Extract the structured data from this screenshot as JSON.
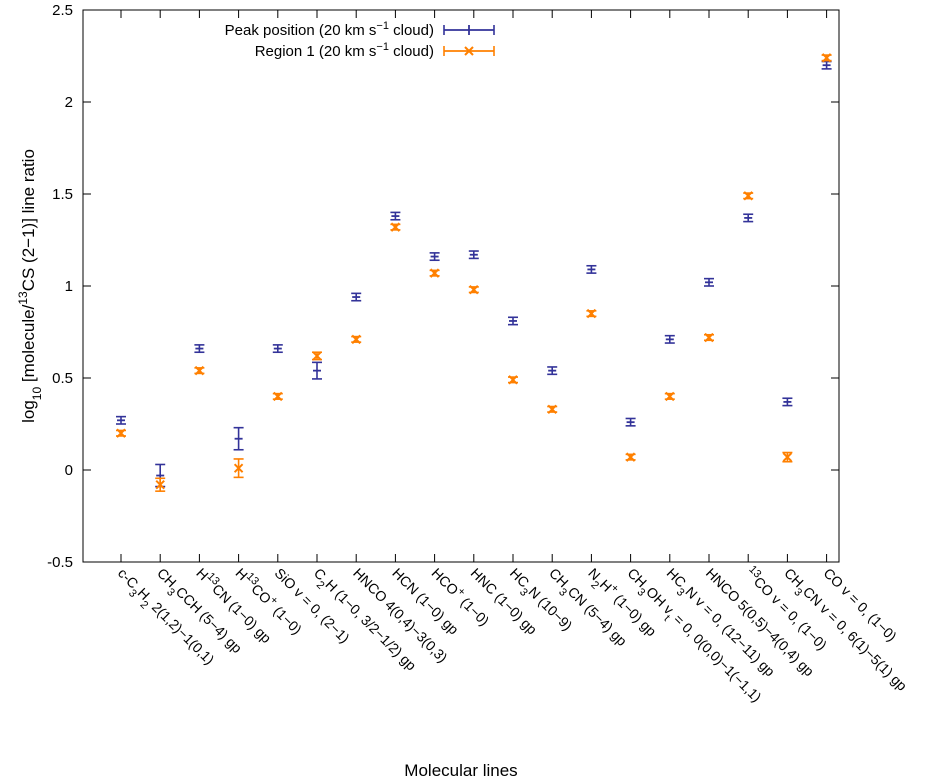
{
  "chart_data": {
    "type": "scatter",
    "xlabel": "Molecular lines",
    "ylabel": "log10 [molecule/13CS (2−1)] line ratio",
    "ylim": [
      -0.5,
      2.5
    ],
    "yticks": [
      "-0.5",
      "0",
      "0.5",
      "1",
      "1.5",
      "2",
      "2.5"
    ],
    "grid": false,
    "legend_position": "top-left",
    "categories": [
      "c-C3H2 2(1,2)−1(0,1)",
      "CH3CCH (5−4) gp",
      "H13CN (1−0) gp",
      "H13CO+ (1−0)",
      "SiO v = 0, (2−1)",
      "C2H (1−0, 3/2−1/2) gp",
      "HNCO 4(0,4)−3(0,3)",
      "HCN (1−0) gp",
      "HCO+ (1−0)",
      "HNC (1−0) gp",
      "HC3N (10−9)",
      "CH3CN (5−4) gp",
      "N2H+ (1−0) gp",
      "CH3OH vt = 0, 0(0,0)−1(−1,1)",
      "HC3N v = 0, (12−11) gp",
      "HNCO 5(0,5)−4(0,4) gp",
      "13CO v = 0, (1−0)",
      "CH3CN v = 0, 6(1)−5(1) gp",
      "CO v = 0, (1−0)"
    ],
    "series": [
      {
        "name": "Peak position (20 km s−1 cloud)",
        "color": "#333399",
        "marker": "plus",
        "values": [
          0.27,
          -0.03,
          0.66,
          0.17,
          0.66,
          0.54,
          0.94,
          1.38,
          1.16,
          1.17,
          0.81,
          0.54,
          1.09,
          0.26,
          0.71,
          1.02,
          1.37,
          0.37,
          2.2
        ],
        "errors": [
          0.02,
          0.06,
          0.02,
          0.06,
          0.02,
          0.045,
          0.02,
          0.02,
          0.02,
          0.02,
          0.02,
          0.02,
          0.02,
          0.02,
          0.02,
          0.02,
          0.02,
          0.02,
          0.02
        ]
      },
      {
        "name": "Region 1 (20 km s−1 cloud)",
        "color": "#ff8000",
        "marker": "cross",
        "values": [
          0.2,
          -0.08,
          0.54,
          0.01,
          0.4,
          0.62,
          0.71,
          1.32,
          1.07,
          0.98,
          0.49,
          0.33,
          0.85,
          0.07,
          0.4,
          0.72,
          1.49,
          0.07,
          2.24
        ],
        "errors": [
          0.015,
          0.035,
          0.015,
          0.05,
          0.015,
          0.02,
          0.015,
          0.015,
          0.015,
          0.015,
          0.015,
          0.015,
          0.015,
          0.015,
          0.015,
          0.015,
          0.015,
          0.025,
          0.015
        ]
      }
    ]
  }
}
